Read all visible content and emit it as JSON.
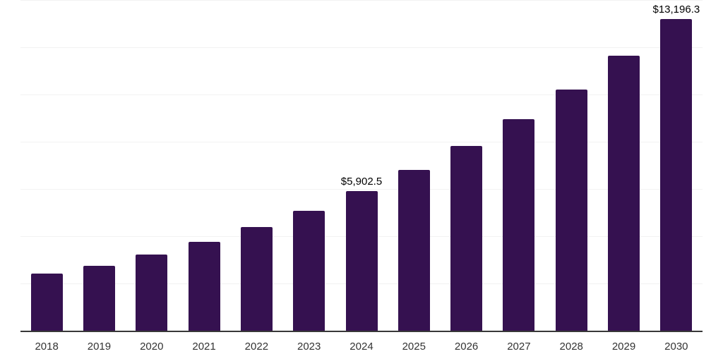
{
  "chart_data": {
    "type": "bar",
    "title": "",
    "xlabel": "",
    "ylabel": "",
    "categories": [
      "2018",
      "2019",
      "2020",
      "2021",
      "2022",
      "2023",
      "2024",
      "2025",
      "2026",
      "2027",
      "2028",
      "2029",
      "2030"
    ],
    "values": [
      2430,
      2745,
      3215,
      3760,
      4380,
      5090,
      5902.5,
      6815,
      7815,
      8955,
      10220,
      11645,
      13196.3
    ],
    "data_labels": [
      "",
      "",
      "",
      "",
      "",
      "",
      "$5,902.5",
      "",
      "",
      "",
      "",
      "",
      "$13,196.3"
    ],
    "ylim": [
      0,
      14000
    ],
    "gridline_step": 2000,
    "grid": true,
    "legend": false,
    "y_axis_labels_visible": false,
    "colors": {
      "bar": "#351150",
      "axis": "#383838",
      "gridline": "#f2f2f2",
      "data_label": "#000000",
      "tick_label": "#333333",
      "background": "#ffffff"
    }
  }
}
